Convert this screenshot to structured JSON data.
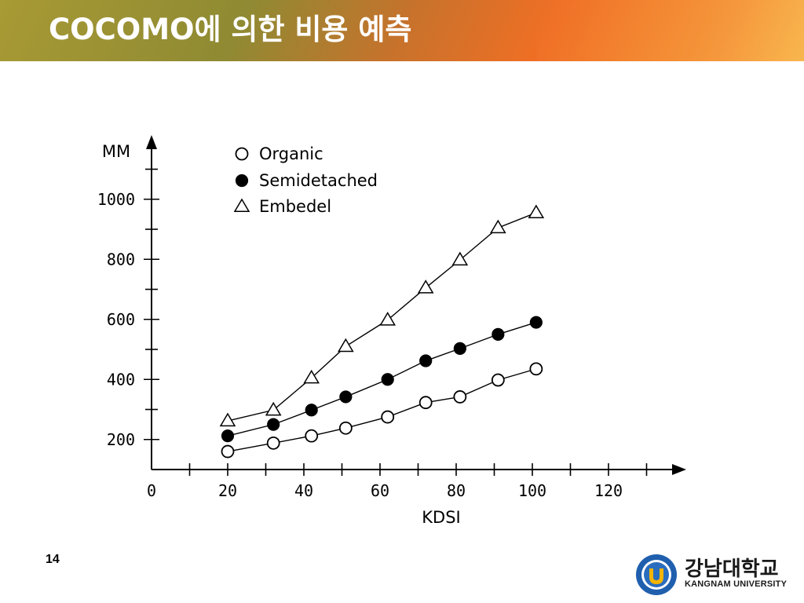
{
  "slide": {
    "title": "COCOMO에 의한 비용 예측",
    "page_number": "14"
  },
  "logo": {
    "korean": "강남대학교",
    "english": "KANGNAM UNIVERSITY"
  },
  "chart_data": {
    "type": "line",
    "title": "",
    "xlabel": "KDSI",
    "ylabel": "MM",
    "xlim": [
      0,
      140
    ],
    "ylim": [
      100,
      1100
    ],
    "x_ticks": [
      0,
      20,
      40,
      60,
      80,
      100,
      120
    ],
    "x_tick_labels": [
      "0",
      "20",
      "40",
      "60",
      "80",
      "100",
      "120"
    ],
    "y_ticks": [
      200,
      400,
      600,
      800,
      1000
    ],
    "y_tick_labels": [
      "200",
      "400",
      "600",
      "800",
      "1000"
    ],
    "legend_position": "top-left",
    "grid": false,
    "series": [
      {
        "name": "Organic",
        "marker": "open-circle",
        "x": [
          20,
          32,
          42,
          51,
          62,
          72,
          81,
          91,
          101
        ],
        "y": [
          160,
          188,
          212,
          238,
          275,
          323,
          342,
          398,
          435
        ]
      },
      {
        "name": "Semidetached",
        "marker": "filled-circle",
        "x": [
          20,
          32,
          42,
          51,
          62,
          72,
          81,
          91,
          101
        ],
        "y": [
          212,
          250,
          298,
          342,
          400,
          462,
          503,
          550,
          590
        ]
      },
      {
        "name": "Embedel",
        "marker": "open-triangle",
        "x": [
          20,
          32,
          42,
          51,
          62,
          72,
          81,
          91,
          101
        ],
        "y": [
          262,
          298,
          405,
          510,
          598,
          705,
          798,
          905,
          955
        ]
      }
    ]
  }
}
